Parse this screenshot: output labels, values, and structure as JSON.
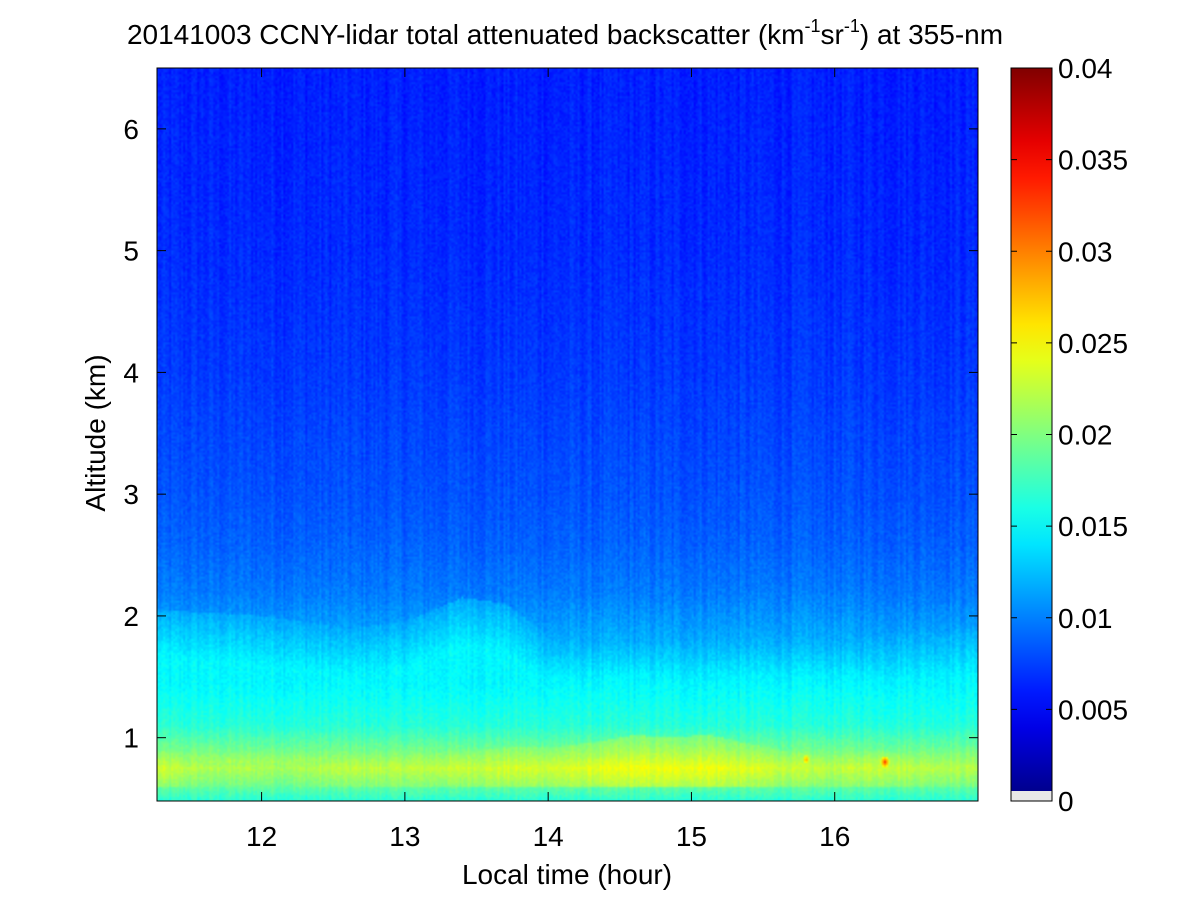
{
  "chart_data": {
    "type": "heatmap",
    "title": {
      "prefix": "20141003 CCNY-lidar total attenuated backscatter (km",
      "sup1": "-1",
      "mid": "sr",
      "sup2": "-1",
      "suffix": ") at 355-nm"
    },
    "xlabel": "Local time (hour)",
    "ylabel": "Altitude (km)",
    "xlim": [
      11.27,
      17.0
    ],
    "ylim": [
      0.48,
      6.5
    ],
    "x_ticks": [
      12,
      13,
      14,
      15,
      16
    ],
    "y_ticks": [
      1,
      2,
      3,
      4,
      5,
      6
    ],
    "colorbar": {
      "colormap": "jet",
      "range": [
        0,
        0.04
      ],
      "ticks": [
        {
          "value": 0,
          "label": "0"
        },
        {
          "value": 0.005,
          "label": "0.005"
        },
        {
          "value": 0.01,
          "label": "0.01"
        },
        {
          "value": 0.015,
          "label": "0.015"
        },
        {
          "value": 0.02,
          "label": "0.02"
        },
        {
          "value": 0.025,
          "label": "0.025"
        },
        {
          "value": 0.03,
          "label": "0.03"
        },
        {
          "value": 0.035,
          "label": "0.035"
        },
        {
          "value": 0.04,
          "label": "0.04"
        }
      ]
    },
    "profile": {
      "altitude_km": [
        0.48,
        0.6,
        0.75,
        0.9,
        1.1,
        1.3,
        1.5,
        1.8,
        2.2,
        2.6,
        3.0,
        3.5,
        4.0,
        5.0,
        6.5
      ],
      "backscatter": [
        0.017,
        0.02,
        0.0225,
        0.0195,
        0.0165,
        0.0155,
        0.0145,
        0.0118,
        0.0098,
        0.0088,
        0.0082,
        0.0077,
        0.0072,
        0.0066,
        0.0062
      ]
    },
    "aerosol_layer_top_km": {
      "time_hour": [
        11.27,
        11.6,
        12.0,
        12.2,
        12.6,
        13.0,
        13.4,
        13.7,
        14.0,
        14.3,
        14.6,
        14.9,
        15.1,
        15.4,
        15.7,
        16.0,
        16.3,
        16.6,
        17.0
      ],
      "top": [
        0.9,
        0.8,
        0.8,
        0.78,
        0.85,
        0.85,
        0.88,
        0.92,
        0.92,
        0.96,
        1.02,
        1.0,
        1.03,
        0.95,
        0.88,
        0.85,
        0.9,
        0.85,
        0.82
      ]
    },
    "boundary_layer_top_km": {
      "time_hour": [
        11.27,
        12.0,
        12.6,
        13.0,
        13.4,
        13.7,
        14.0,
        14.4,
        14.9,
        15.3,
        15.8,
        16.3,
        17.0
      ],
      "top": [
        1.65,
        1.6,
        1.5,
        1.55,
        1.75,
        1.7,
        1.45,
        1.35,
        1.3,
        1.35,
        1.4,
        1.45,
        1.5
      ]
    },
    "hotspots": [
      {
        "time_hour": 15.8,
        "altitude_km": 0.82,
        "value": 0.029
      },
      {
        "time_hour": 16.35,
        "altitude_km": 0.8,
        "value": 0.033
      }
    ],
    "grid": false
  }
}
